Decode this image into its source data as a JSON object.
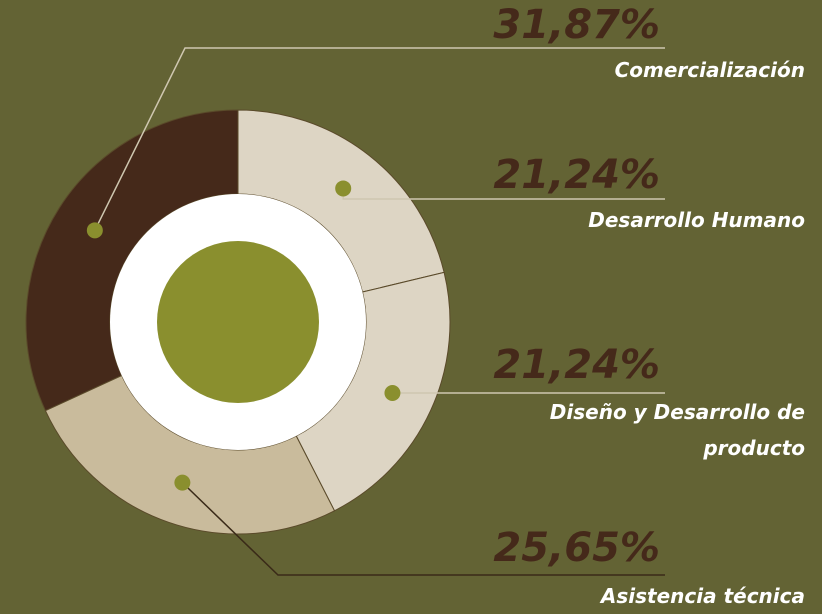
{
  "chart_data": {
    "type": "donut",
    "categories": [
      "Comercialización",
      "Desarrollo Humano",
      "Diseño y Desarrollo de producto",
      "Asistencia técnica"
    ],
    "values": [
      31.87,
      21.24,
      21.24,
      25.65
    ],
    "value_labels": [
      "31,87%",
      "21,24%",
      "21,24%",
      "25,65%"
    ],
    "colors": [
      "#45291a",
      "#ddd5c4",
      "#ddd5c4",
      "#c9bb9c"
    ]
  }
}
